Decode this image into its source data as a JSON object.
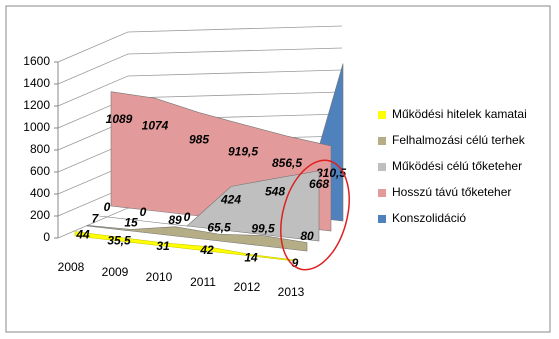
{
  "chart_data": {
    "type": "area3d",
    "categories": [
      "2008",
      "2009",
      "2010",
      "2011",
      "2012",
      "2013"
    ],
    "ylim": [
      0,
      1600
    ],
    "yticks": [
      0,
      200,
      400,
      600,
      800,
      1000,
      1200,
      1400,
      1600
    ],
    "grid": true,
    "legend": "right",
    "series": [
      {
        "name": "Működési hitelek kamatai",
        "color": "#ffff00",
        "values": [
          44,
          35.5,
          31,
          42,
          14,
          9
        ],
        "value_labels": [
          "44",
          "35,5",
          "31",
          "42",
          "14",
          "9"
        ]
      },
      {
        "name": "Felhalmozási célú terhek",
        "color": "#b5ad85",
        "values": [
          7,
          15,
          89,
          65.5,
          99.5,
          80
        ],
        "value_labels": [
          "7",
          "15",
          "89",
          "65,5",
          "99,5",
          "80"
        ]
      },
      {
        "name": "Működési célú tőketeher",
        "color": "#bfbfbf",
        "values": [
          0,
          0,
          0,
          424,
          548,
          668
        ],
        "value_labels": [
          "0",
          "0",
          "0",
          "424",
          "548",
          "668"
        ]
      },
      {
        "name": "Hosszú távú tőketeher",
        "color": "#e39a9a",
        "values": [
          1089,
          1074,
          985,
          919.5,
          856.5,
          810.5
        ],
        "value_labels": [
          "1089",
          "1074",
          "985",
          "919,5",
          "856,5",
          "810,5"
        ]
      },
      {
        "name": "Konszolidáció",
        "color": "#4f81bd",
        "values": [
          0,
          0,
          0,
          0,
          0,
          1500
        ]
      }
    ]
  }
}
